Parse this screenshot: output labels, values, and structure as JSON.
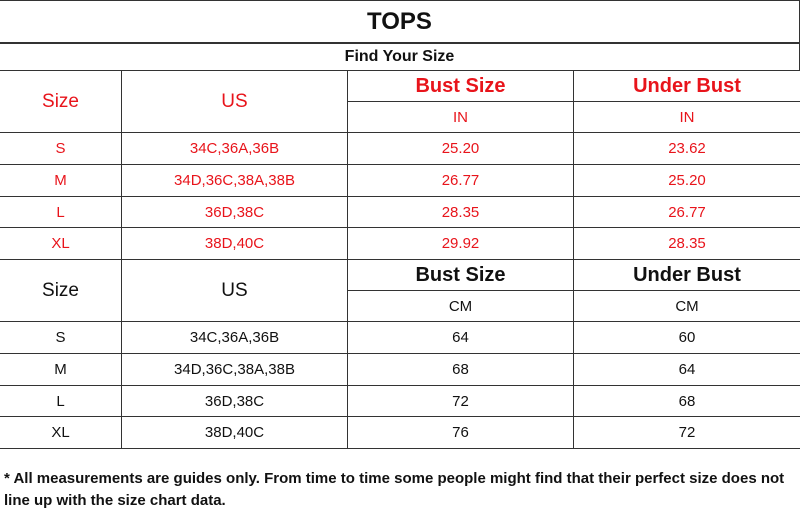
{
  "title": "TOPS",
  "subtitle": "Find Your Size",
  "colors": {
    "inch_section": "#e8141b",
    "cm_section": "#111111"
  },
  "inch_section": {
    "headers": {
      "size": "Size",
      "us": "US",
      "bust": "Bust Size",
      "under": "Under Bust",
      "unit_bust": "IN",
      "unit_under": "IN"
    },
    "rows": [
      {
        "size": "S",
        "us": "34C,36A,36B",
        "bust": "25.20",
        "under": "23.62"
      },
      {
        "size": "M",
        "us": "34D,36C,38A,38B",
        "bust": "26.77",
        "under": "25.20"
      },
      {
        "size": "L",
        "us": "36D,38C",
        "bust": "28.35",
        "under": "26.77"
      },
      {
        "size": "XL",
        "us": "38D,40C",
        "bust": "29.92",
        "under": "28.35"
      }
    ]
  },
  "cm_section": {
    "headers": {
      "size": "Size",
      "us": "US",
      "bust": "Bust Size",
      "under": "Under Bust",
      "unit_bust": "CM",
      "unit_under": "CM"
    },
    "rows": [
      {
        "size": "S",
        "us": "34C,36A,36B",
        "bust": "64",
        "under": "60"
      },
      {
        "size": "M",
        "us": "34D,36C,38A,38B",
        "bust": "68",
        "under": "64"
      },
      {
        "size": "L",
        "us": "36D,38C",
        "bust": "72",
        "under": "68"
      },
      {
        "size": "XL",
        "us": "38D,40C",
        "bust": "76",
        "under": "72"
      }
    ]
  },
  "footnote": "* All measurements are guides only. From time to time some people might find that their perfect size does not line up with the size chart data."
}
